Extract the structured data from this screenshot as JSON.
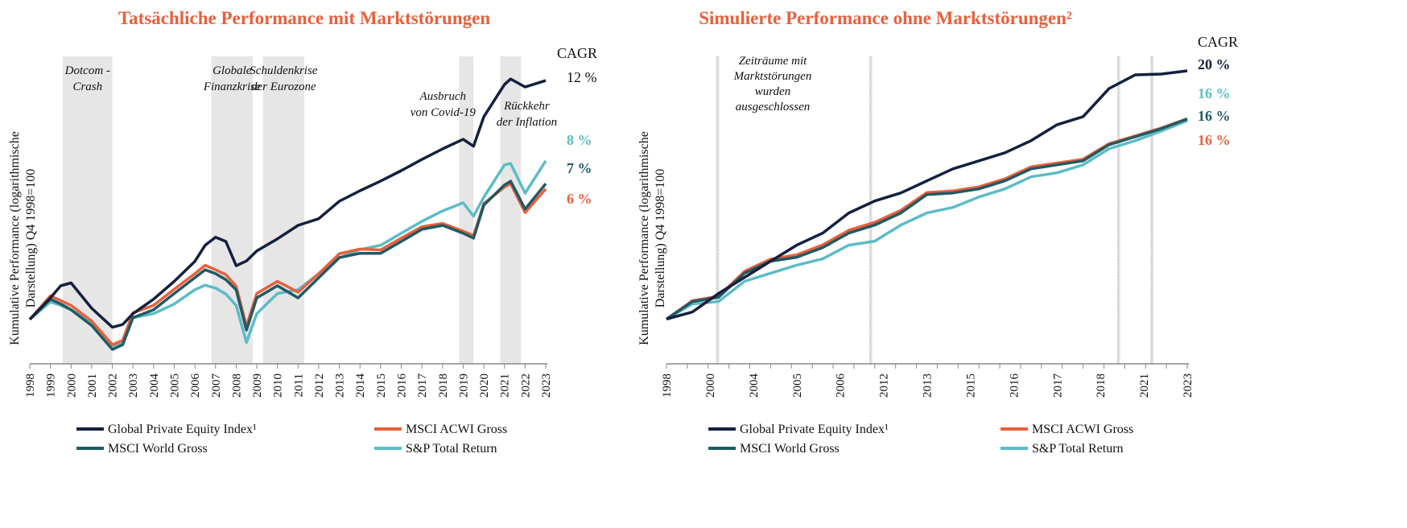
{
  "chart_data": [
    {
      "type": "line",
      "title": "Tatsächliche Performance mit Marktstörungen",
      "ylabel": [
        "Kumulative Performance (logarithmische",
        "Darstellung) Q4 1998=100"
      ],
      "xlabel": "",
      "y_scale": "log",
      "ylim": [
        59,
        2060
      ],
      "xlim": [
        1998,
        2023
      ],
      "grid": false,
      "legend_position": "bottom",
      "x_tick_labels": [
        "1998",
        "1999",
        "2000",
        "2001",
        "2002",
        "2003",
        "2004",
        "2005",
        "2006",
        "2007",
        "2008",
        "2009",
        "2010",
        "2011",
        "2012",
        "2013",
        "2014",
        "2015",
        "2016",
        "2017",
        "2018",
        "2019",
        "2020",
        "2021",
        "2022",
        "2023"
      ],
      "shaded_periods": [
        {
          "from": 1999.6,
          "to": 2002.0,
          "label": [
            "Dotcom -",
            "Crash"
          ]
        },
        {
          "from": 2006.8,
          "to": 2008.8,
          "label": [
            "Globale",
            "Finanzkrise"
          ]
        },
        {
          "from": 2009.3,
          "to": 2011.3,
          "label": [
            "Schuldenkrise",
            "der Eurozone"
          ]
        },
        {
          "from": 2018.8,
          "to": 2019.5,
          "label": [
            "Ausbruch",
            "von Covid-19"
          ]
        },
        {
          "from": 2020.8,
          "to": 2021.8,
          "label": [
            "Rückkehr",
            "der Inflation"
          ]
        }
      ],
      "cagr_header": "CAGR",
      "x": [
        1998,
        1999,
        1999.5,
        2000,
        2001,
        2002,
        2002.5,
        2003,
        2004,
        2005,
        2006,
        2006.5,
        2007,
        2007.5,
        2008,
        2008.5,
        2009,
        2010,
        2011,
        2012,
        2013,
        2014,
        2015,
        2016,
        2017,
        2018,
        2019,
        2019.5,
        2020,
        2021,
        2021.3,
        2022,
        2023
      ],
      "series": [
        {
          "name": "Global Private Equity Index¹",
          "color": "#14203f",
          "cagr": "12 %",
          "values": [
            100,
            129,
            149,
            154,
            114,
            91,
            94,
            107,
            127,
            157,
            199,
            241,
            265,
            252,
            189,
            200,
            225,
            260,
            305,
            330,
            406,
            460,
            516,
            584,
            667,
            756,
            847,
            780,
            1107,
            1621,
            1733,
            1575,
            1700
          ]
        },
        {
          "name": "MSCI ACWI Gross",
          "color": "#e8603c",
          "cagr": "6 %",
          "values": [
            100,
            132,
            125,
            118,
            98,
            74,
            78,
            108,
            118,
            143,
            172,
            190,
            180,
            170,
            148,
            92,
            136,
            157,
            138,
            172,
            218,
            230,
            228,
            262,
            300,
            312,
            285,
            270,
            395,
            480,
            500,
            355,
            470
          ]
        },
        {
          "name": "MSCI World Gross",
          "color": "#1f5a63",
          "cagr": "7 %",
          "values": [
            100,
            127,
            120,
            112,
            93,
            70,
            74,
            102,
            112,
            136,
            164,
            180,
            172,
            160,
            142,
            88,
            129,
            149,
            129,
            164,
            208,
            219,
            219,
            252,
            291,
            305,
            278,
            262,
            388,
            492,
            515,
            370,
            500
          ]
        },
        {
          "name": "S&P Total Return",
          "color": "#5cbcc6",
          "cagr": "8 %",
          "values": [
            100,
            123,
            118,
            112,
            97,
            73,
            76,
            102,
            107,
            120,
            142,
            150,
            145,
            135,
            118,
            76,
            107,
            136,
            142,
            172,
            208,
            229,
            241,
            278,
            320,
            362,
            399,
            340,
            426,
            625,
            636,
            447,
            656
          ]
        }
      ]
    },
    {
      "type": "line",
      "title": "Simulierte Performance ohne Marktstörungen²",
      "ylabel": [
        "Kumulative Performance (logarithmische",
        "Darstellung) Q4 1998=100"
      ],
      "xlabel": "",
      "y_scale": "log",
      "ylim": [
        44,
        10700
      ],
      "xlim": [
        0,
        25
      ],
      "grid": false,
      "legend_position": "bottom",
      "x_tick_labels": [
        "1998",
        "2000",
        "2004",
        "2005",
        "2006",
        "2012",
        "2013",
        "2015",
        "2016",
        "2017",
        "2018",
        "2021",
        "2023"
      ],
      "excluded_markers": [
        2.45,
        9.8,
        21.7,
        23.3
      ],
      "annotation": [
        "Zeiträume mit",
        "Marktstörungen",
        "wurden",
        "ausgeschlossen"
      ],
      "cagr_header": "CAGR",
      "x": [
        0,
        1.25,
        2.5,
        3.75,
        5,
        6.25,
        7.5,
        8.75,
        10,
        11.25,
        12.5,
        13.75,
        15,
        16.25,
        17.5,
        18.75,
        20,
        21.25,
        22.5,
        23.75,
        25
      ],
      "series": [
        {
          "name": "Global Private Equity Index¹",
          "color": "#14203f",
          "cagr": "20 %",
          "values": [
            100,
            114,
            160,
            215,
            289,
            388,
            484,
            700,
            873,
            1012,
            1262,
            1574,
            1825,
            2114,
            2637,
            3541,
            4103,
            6874,
            8832,
            8966,
            9510
          ]
        },
        {
          "name": "MSCI ACWI Gross",
          "color": "#e8603c",
          "cagr": "16 %",
          "values": [
            100,
            140,
            152,
            240,
            300,
            325,
            390,
            510,
            590,
            735,
            1020,
            1050,
            1130,
            1310,
            1630,
            1750,
            1880,
            2500,
            2880,
            3330,
            3950
          ]
        },
        {
          "name": "MSCI World Gross",
          "color": "#1f5a63",
          "cagr": "16 %",
          "values": [
            100,
            138,
            149,
            232,
            289,
            311,
            371,
            484,
            561,
            700,
            982,
            1012,
            1089,
            1262,
            1574,
            1695,
            1825,
            2450,
            2838,
            3289,
            3925
          ]
        },
        {
          "name": "S&P Total Return",
          "color": "#5cbcc6",
          "cagr": "16 %",
          "values": [
            100,
            132,
            138,
            200,
            232,
            269,
            302,
            388,
            418,
            561,
            700,
            776,
            940,
            1089,
            1359,
            1463,
            1695,
            2276,
            2637,
            3147,
            3813
          ]
        }
      ]
    }
  ]
}
